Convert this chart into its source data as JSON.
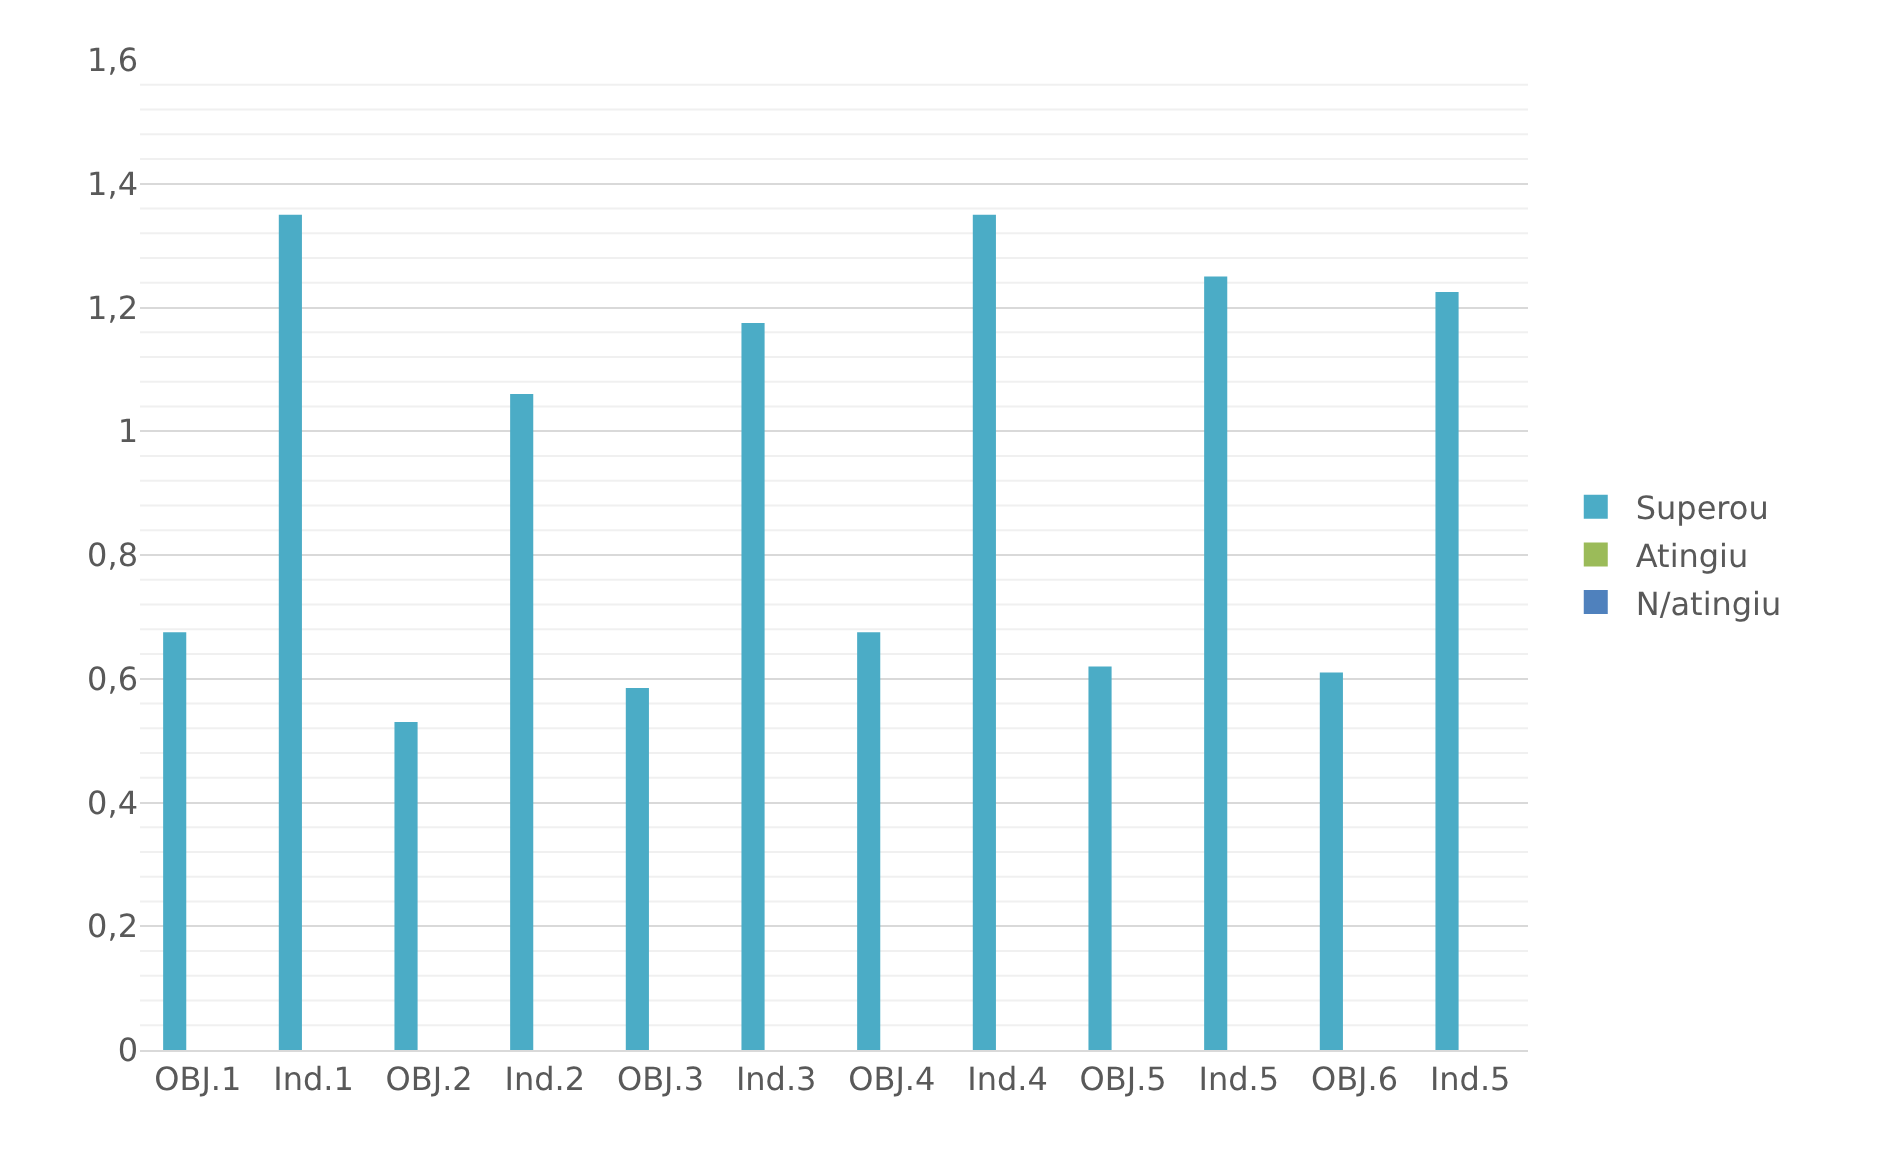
{
  "chart_data": {
    "type": "bar",
    "categories": [
      "OBJ.1",
      "Ind.1",
      "OBJ.2",
      "Ind.2",
      "OBJ.3",
      "Ind.3",
      "OBJ.4",
      "Ind.4",
      "OBJ.5",
      "Ind.5",
      "OBJ.6",
      "Ind.5"
    ],
    "series": [
      {
        "name": "Superou",
        "color": "#4bacc6",
        "values": [
          0.675,
          1.35,
          0.53,
          1.06,
          0.585,
          1.175,
          0.675,
          1.35,
          0.62,
          1.25,
          0.61,
          1.225
        ]
      },
      {
        "name": "Atingiu",
        "color": "#9bbb59",
        "values": [
          null,
          null,
          null,
          null,
          null,
          null,
          null,
          null,
          null,
          null,
          null,
          null
        ]
      },
      {
        "name": "N/atingiu",
        "color": "#4f81bd",
        "values": [
          null,
          null,
          null,
          null,
          null,
          null,
          null,
          null,
          null,
          null,
          null,
          null
        ]
      }
    ],
    "ylim": [
      0,
      1.6
    ],
    "yticks": [
      {
        "value": 0,
        "label": "0"
      },
      {
        "value": 0.2,
        "label": "0,2"
      },
      {
        "value": 0.4,
        "label": "0,4"
      },
      {
        "value": 0.6,
        "label": "0,6"
      },
      {
        "value": 0.8,
        "label": "0,8"
      },
      {
        "value": 1,
        "label": "1"
      },
      {
        "value": 1.2,
        "label": "1,2"
      },
      {
        "value": 1.4,
        "label": "1,4"
      },
      {
        "value": 1.6,
        "label": "1,6"
      }
    ],
    "grid": "y",
    "legend": "right"
  }
}
